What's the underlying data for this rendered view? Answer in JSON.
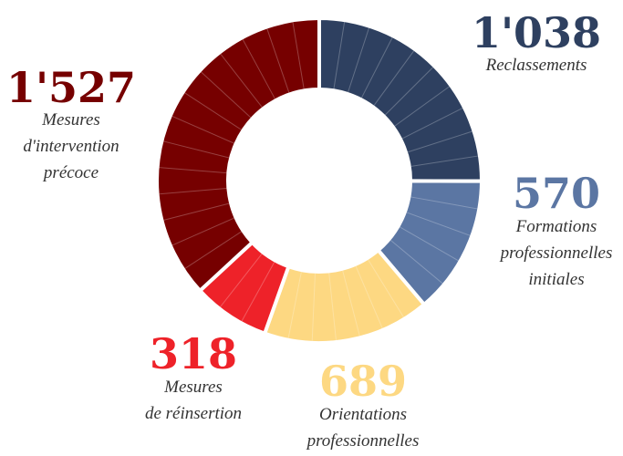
{
  "chart_data": {
    "type": "donut",
    "categories": [
      [
        "Reclassements"
      ],
      [
        "Formations",
        "professionnelles",
        "initiales"
      ],
      [
        "Orientations",
        "professionnelles"
      ],
      [
        "Mesures",
        "de réinsertion"
      ],
      [
        "Mesures",
        "d'intervention",
        "précoce"
      ]
    ],
    "values": [
      1038,
      570,
      689,
      318,
      1527
    ],
    "value_labels": [
      "1'038",
      "570",
      "689",
      "318",
      "1'527"
    ],
    "colors": [
      "#2e4060",
      "#5b76a3",
      "#fdd882",
      "#ee2229",
      "#760000"
    ]
  }
}
